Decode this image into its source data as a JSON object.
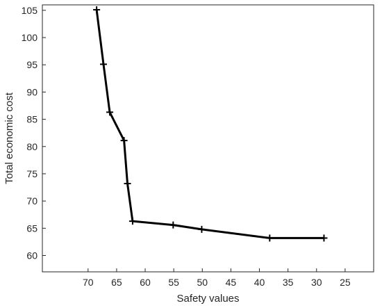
{
  "chart_data": {
    "type": "line",
    "title": "",
    "xlabel": "Safety values",
    "ylabel": "Total economic cost",
    "xlim": [
      20,
      78
    ],
    "ylim": [
      57,
      106
    ],
    "x_reversed": true,
    "grid": false,
    "legend": "none",
    "x_ticks": [
      70,
      65,
      60,
      55,
      50,
      45,
      40,
      35,
      30,
      25
    ],
    "y_ticks": [
      60,
      65,
      70,
      75,
      80,
      85,
      90,
      95,
      100,
      105
    ],
    "marker": "plus",
    "line_color": "#000000",
    "series": [
      {
        "x": [
          68.5,
          67.3,
          66.2,
          63.7,
          63.1,
          62.2,
          55.1,
          50.1,
          38.2,
          28.7
        ],
        "y": [
          105.1,
          95.1,
          86.3,
          81.1,
          73.2,
          66.3,
          65.6,
          64.8,
          63.2,
          63.2
        ]
      }
    ]
  }
}
